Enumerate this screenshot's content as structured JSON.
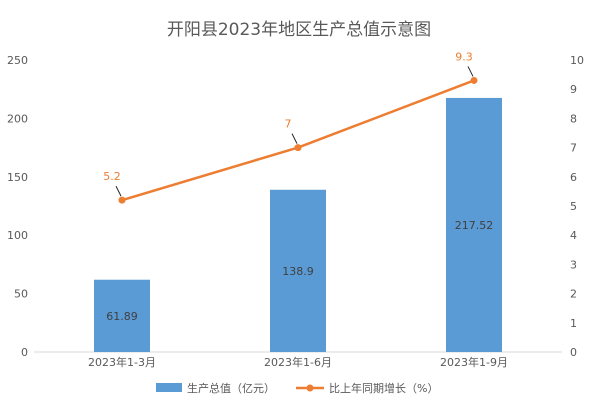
{
  "chart_data": {
    "type": "bar",
    "title": "开阳县2023年地区生产总值示意图",
    "categories": [
      "2023年1-3月",
      "2023年1-6月",
      "2023年1-9月"
    ],
    "series": [
      {
        "name": "生产总值（亿元）",
        "type": "bar",
        "axis": "left",
        "values": [
          61.89,
          138.9,
          217.52
        ],
        "labels": [
          "61.89",
          "138.9",
          "217.52"
        ],
        "color": "#5B9BD5"
      },
      {
        "name": "比上年同期增长（%）",
        "type": "line",
        "axis": "right",
        "values": [
          5.2,
          7,
          9.3
        ],
        "labels": [
          "5.2",
          "7",
          "9.3"
        ],
        "color": "#ED7D31"
      }
    ],
    "y_left": {
      "range": [
        0,
        250
      ],
      "ticks": [
        0,
        50,
        100,
        150,
        200,
        250
      ]
    },
    "y_right": {
      "range": [
        0,
        10
      ],
      "ticks": [
        0,
        1,
        2,
        3,
        4,
        5,
        6,
        7,
        8,
        9,
        10
      ]
    },
    "grid": false,
    "legend": "bottom"
  }
}
